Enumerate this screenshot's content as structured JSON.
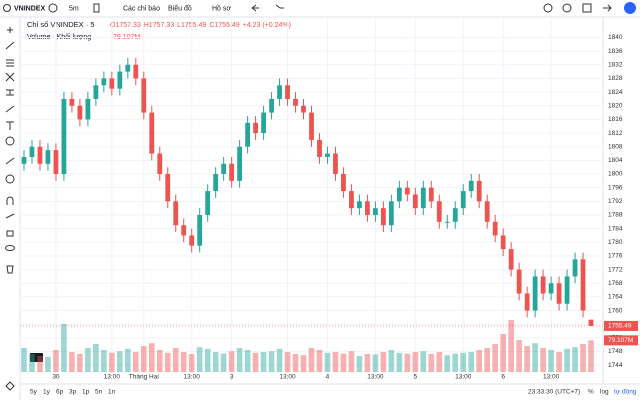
{
  "toolbar": {
    "symbol": "VNINDEX",
    "interval": "5m",
    "indicators": "Các chỉ báo",
    "chart_type": "Biểu đồ",
    "profile": "Hồ sơ"
  },
  "legend": {
    "title": "Chỉ số VNINDEX · 5",
    "ohlc": [
      "O1757.33",
      "H1757.33",
      "L1755.49",
      "C1755.49"
    ],
    "change": "+4.23 (+0.24%)",
    "volume_title": "Volume · Khối lượng",
    "volume_value": "79.107M"
  },
  "badges": {
    "volume": "79.107M",
    "price": "1755.49"
  },
  "bottom_bar": {
    "ranges": [
      "5y",
      "1y",
      "6p",
      "3p",
      "1p",
      "5n",
      "1n"
    ],
    "clock": "23:33:30 (UTC+7)",
    "percent": "%",
    "log": "log",
    "auto": "tự động"
  },
  "chart_data": {
    "type": "candlestick",
    "up_color": "#26a69a",
    "down_color": "#ef5350",
    "xlim": [
      -0.5,
      72.5
    ],
    "ylim": [
      1742,
      1846
    ],
    "yticks": [
      1744,
      1748,
      1752,
      1756,
      1760,
      1764,
      1768,
      1772,
      1776,
      1780,
      1784,
      1788,
      1792,
      1796,
      1800,
      1804,
      1808,
      1812,
      1816,
      1820,
      1824,
      1828,
      1832,
      1836,
      1840
    ],
    "xticks": [
      {
        "value": 4,
        "label": "30"
      },
      {
        "value": 11,
        "label": "13:00"
      },
      {
        "value": 15,
        "label": "Tháng Hai"
      },
      {
        "value": 21,
        "label": "13:00"
      },
      {
        "value": 26,
        "label": "3"
      },
      {
        "value": 33,
        "label": "13:00"
      },
      {
        "value": 38,
        "label": "4"
      },
      {
        "value": 44,
        "label": "13:00"
      },
      {
        "value": 49,
        "label": "5"
      },
      {
        "value": 55,
        "label": "13:00"
      },
      {
        "value": 60,
        "label": "6"
      },
      {
        "value": 66,
        "label": "13:00"
      }
    ],
    "open": [
      1803,
      1805,
      1808,
      1803,
      1807,
      1800,
      1822,
      1820,
      1816,
      1822,
      1826,
      1828,
      1825,
      1830,
      1832,
      1828,
      1818,
      1806,
      1800,
      1792,
      1785,
      1782,
      1779,
      1788,
      1795,
      1800,
      1803,
      1798,
      1808,
      1815,
      1812,
      1818,
      1822,
      1826,
      1822,
      1820,
      1818,
      1810,
      1805,
      1806,
      1800,
      1795,
      1790,
      1792,
      1788,
      1790,
      1785,
      1792,
      1796,
      1794,
      1790,
      1796,
      1792,
      1786,
      1786,
      1790,
      1795,
      1798,
      1792,
      1786,
      1782,
      1778,
      1772,
      1765,
      1760,
      1770,
      1765,
      1768,
      1762,
      1770,
      1775,
      1757.33
    ],
    "high": [
      1807,
      1810,
      1810,
      1809,
      1809,
      1824,
      1824,
      1822,
      1824,
      1828,
      1830,
      1830,
      1832,
      1834,
      1834,
      1830,
      1820,
      1808,
      1802,
      1794,
      1787,
      1784,
      1790,
      1797,
      1802,
      1805,
      1805,
      1810,
      1817,
      1817,
      1820,
      1824,
      1828,
      1828,
      1824,
      1822,
      1820,
      1812,
      1808,
      1808,
      1802,
      1797,
      1794,
      1794,
      1792,
      1792,
      1794,
      1798,
      1798,
      1796,
      1798,
      1798,
      1794,
      1788,
      1792,
      1797,
      1800,
      1800,
      1794,
      1788,
      1784,
      1780,
      1774,
      1767,
      1772,
      1772,
      1770,
      1770,
      1772,
      1777,
      1777,
      1757.33
    ],
    "low": [
      1801,
      1803,
      1801,
      1801,
      1798,
      1798,
      1818,
      1814,
      1814,
      1820,
      1824,
      1823,
      1823,
      1828,
      1826,
      1816,
      1804,
      1798,
      1790,
      1783,
      1780,
      1777,
      1777,
      1786,
      1793,
      1798,
      1796,
      1796,
      1806,
      1810,
      1810,
      1816,
      1820,
      1820,
      1818,
      1816,
      1808,
      1803,
      1803,
      1798,
      1793,
      1788,
      1788,
      1786,
      1786,
      1783,
      1783,
      1790,
      1792,
      1788,
      1788,
      1790,
      1784,
      1784,
      1784,
      1788,
      1793,
      1790,
      1784,
      1780,
      1776,
      1770,
      1763,
      1758,
      1758,
      1763,
      1763,
      1760,
      1760,
      1768,
      1758,
      1755.49
    ],
    "close": [
      1805,
      1808,
      1803,
      1807,
      1800,
      1822,
      1820,
      1816,
      1822,
      1826,
      1828,
      1825,
      1830,
      1832,
      1828,
      1818,
      1806,
      1800,
      1792,
      1785,
      1782,
      1779,
      1788,
      1795,
      1800,
      1803,
      1798,
      1808,
      1815,
      1812,
      1818,
      1822,
      1826,
      1822,
      1820,
      1818,
      1810,
      1805,
      1806,
      1800,
      1795,
      1790,
      1792,
      1788,
      1790,
      1785,
      1792,
      1796,
      1794,
      1790,
      1796,
      1792,
      1786,
      1786,
      1790,
      1795,
      1798,
      1792,
      1786,
      1782,
      1778,
      1772,
      1765,
      1760,
      1770,
      1765,
      1768,
      1762,
      1770,
      1775,
      1760,
      1755.49
    ],
    "volume": [
      60,
      45,
      40,
      38,
      55,
      120,
      50,
      45,
      60,
      70,
      55,
      48,
      52,
      58,
      50,
      65,
      72,
      55,
      48,
      60,
      50,
      45,
      62,
      58,
      50,
      46,
      52,
      60,
      55,
      48,
      50,
      52,
      58,
      50,
      45,
      42,
      60,
      55,
      48,
      50,
      46,
      52,
      40,
      45,
      44,
      50,
      55,
      48,
      46,
      50,
      52,
      45,
      50,
      42,
      46,
      48,
      50,
      55,
      60,
      70,
      95,
      130,
      80,
      65,
      72,
      60,
      55,
      50,
      58,
      62,
      70,
      79.107
    ]
  }
}
